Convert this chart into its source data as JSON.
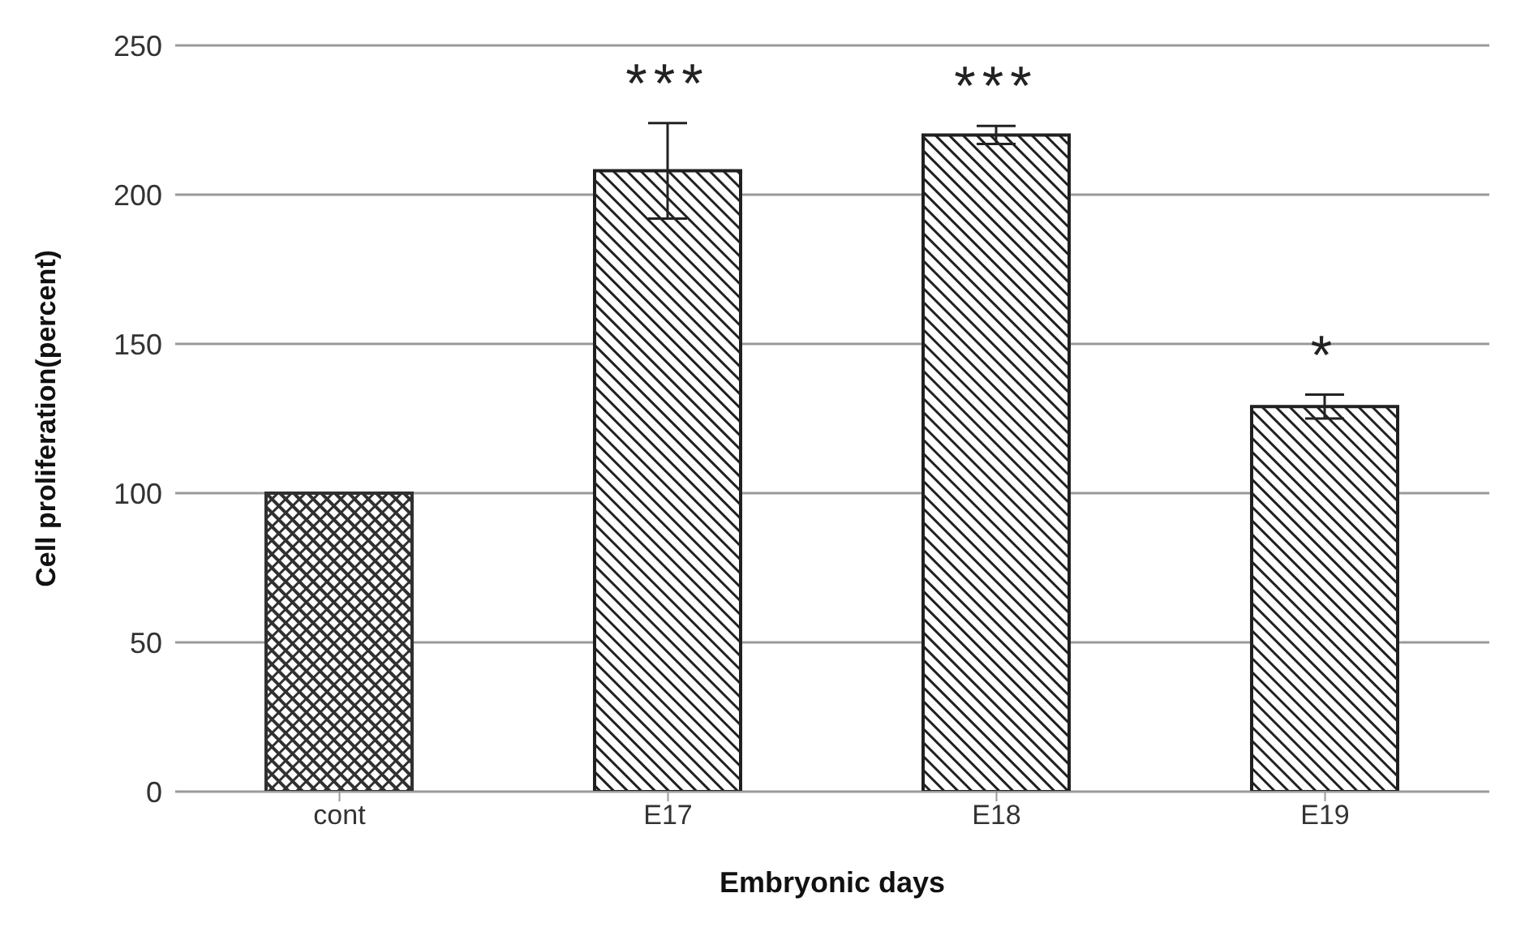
{
  "chart_data": {
    "type": "bar",
    "xlabel": "Embryonic days",
    "ylabel": "Cell proliferation(percent)",
    "categories": [
      "cont",
      "E17",
      "E18",
      "E19"
    ],
    "values": [
      100,
      208,
      220,
      129
    ],
    "errors": [
      null,
      16,
      3,
      4
    ],
    "colors": [
      "#303030",
      "#202020",
      "#202020",
      "#202020"
    ],
    "value_labels": [
      null,
      "***",
      "***",
      "*"
    ],
    "ylim": [
      0,
      250
    ],
    "yticks": [
      0,
      50,
      100,
      150,
      200,
      250
    ],
    "grid": "y",
    "legend": false
  }
}
